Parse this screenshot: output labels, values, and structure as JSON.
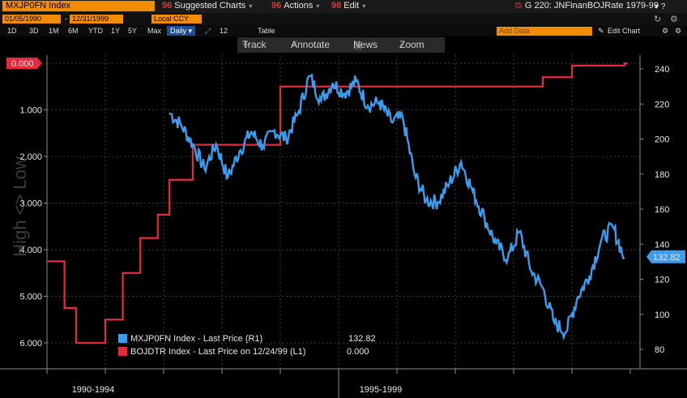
{
  "toolbar": {
    "ticker": "MXJP0FN Index",
    "suggested": "Suggested Charts",
    "actions": "Actions",
    "edit": "Edit",
    "title": "G 220: JNFinanBOJRate 1979-99"
  },
  "dates": {
    "start": "01/05/1990",
    "end": "12/31/1999",
    "currency": "Local CCY"
  },
  "ranges": [
    "1D",
    "3D",
    "1M",
    "6M",
    "YTD",
    "1Y",
    "5Y",
    "Max"
  ],
  "daily_label": "Daily",
  "interval": "12",
  "table_label": "Table",
  "add_data_placeholder": "Add Data",
  "edit_chart": "Edit Chart",
  "tools": {
    "track": "Track",
    "annotate": "Annotate",
    "news": "News",
    "zoom": "Zoom"
  },
  "colors": {
    "blue": "#3a9ef0",
    "red": "#e8283c",
    "accent": "#f28c00",
    "grid": "#3a3a3a"
  },
  "chart_data": {
    "type": "line",
    "watermark": "High <> Low",
    "left_axis": {
      "ticks": [
        "0.000",
        "1.000",
        "2.000",
        "3.000",
        "4.000",
        "5.000",
        "6.000"
      ],
      "reversed": true,
      "range": [
        0,
        6
      ]
    },
    "right_axis": {
      "ticks": [
        "240",
        "220",
        "200",
        "180",
        "160",
        "140",
        "120",
        "100",
        "80"
      ],
      "range": [
        80,
        240
      ]
    },
    "x_labels": [
      "1990-1994",
      "1995-1999"
    ],
    "current_value_labels": {
      "left": "0.000",
      "right": "132.82"
    },
    "legend": [
      {
        "name": "MXJP0FN Index - Last Price (R1)",
        "value": "132.82"
      },
      {
        "name": "BOJDTR Index - Last Price on 12/24/99 (L1)",
        "value": "0.000"
      }
    ],
    "series": [
      {
        "name": "MXJP0FN Index - Last Price (R1)",
        "axis": "right",
        "x": [
          1992.1,
          1992.3,
          1992.5,
          1992.7,
          1992.9,
          1993.1,
          1993.3,
          1993.5,
          1993.7,
          1993.9,
          1994.1,
          1994.3,
          1994.5,
          1994.7,
          1994.9,
          1995.1,
          1995.3,
          1995.5,
          1995.7,
          1995.9,
          1996.1,
          1996.3,
          1996.5,
          1996.7,
          1996.9,
          1997.1,
          1997.3,
          1997.5,
          1997.7,
          1997.9,
          1998.1,
          1998.3,
          1998.5,
          1998.7,
          1998.9,
          1999.1,
          1999.3,
          1999.5,
          1999.7,
          1999.9
        ],
        "y": [
          215,
          208,
          197,
          183,
          197,
          178,
          193,
          204,
          196,
          205,
          200,
          214,
          236,
          222,
          232,
          226,
          233,
          219,
          221,
          210,
          212,
          180,
          165,
          164,
          175,
          187,
          170,
          155,
          140,
          132,
          147,
          125,
          115,
          95,
          90,
          110,
          122,
          142,
          150,
          132
        ]
      },
      {
        "name": "BOJDTR Index - Last Price on 12/24/99 (L1)",
        "axis": "left",
        "x": [
          1990.0,
          1990.3,
          1990.5,
          1991.0,
          1991.3,
          1991.6,
          1991.9,
          1992.1,
          1992.5,
          1993.0,
          1994.0,
          1995.5,
          1996.0,
          1998.0,
          1998.5,
          1998.8,
          1999.0,
          1999.9
        ],
        "y": [
          4.25,
          5.25,
          6.0,
          5.5,
          4.5,
          3.75,
          3.25,
          2.5,
          1.75,
          1.75,
          0.5,
          0.5,
          0.5,
          0.5,
          0.3,
          0.3,
          0.05,
          0.0
        ]
      }
    ]
  }
}
